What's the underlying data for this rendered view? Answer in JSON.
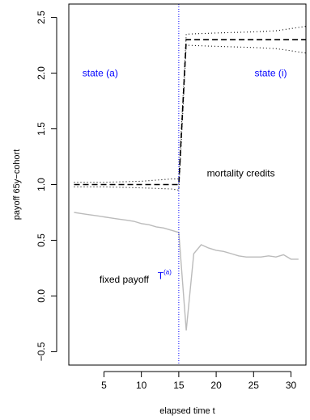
{
  "chart_data": {
    "type": "line",
    "title": "",
    "xlabel": "elapsed time t",
    "ylabel": "payoff 65y−cohort",
    "xlim": [
      0.3,
      32
    ],
    "ylim": [
      -0.62,
      2.62
    ],
    "x_ticks": [
      5,
      10,
      15,
      20,
      25,
      30
    ],
    "y_ticks": [
      -0.5,
      0.0,
      0.5,
      1.0,
      1.5,
      2.0,
      2.5
    ],
    "x_tick_labels": [
      "5",
      "10",
      "15",
      "20",
      "25",
      "30"
    ],
    "y_tick_labels": [
      "−0.5",
      "0.0",
      "0.5",
      "1.0",
      "1.5",
      "2.0",
      "2.5"
    ],
    "grid": false,
    "vline": {
      "x": 15,
      "color": "#0000ff",
      "style": "dotted"
    },
    "series": [
      {
        "style": "dashed",
        "color": "#000000",
        "x": [
          1,
          2,
          3,
          4,
          5,
          6,
          7,
          8,
          9,
          10,
          11,
          12,
          13,
          14,
          15,
          16,
          17,
          18,
          19,
          20,
          21,
          22,
          23,
          24,
          25,
          26,
          27,
          28,
          29,
          30,
          31,
          32
        ],
        "y": [
          1.0,
          1.0,
          1.0,
          1.0,
          1.0,
          1.0,
          1.0,
          1.0,
          1.0,
          1.0,
          1.0,
          1.0,
          1.0,
          1.0,
          1.0,
          2.3,
          2.3,
          2.3,
          2.3,
          2.3,
          2.3,
          2.3,
          2.3,
          2.3,
          2.3,
          2.3,
          2.3,
          2.3,
          2.3,
          2.3,
          2.3,
          2.3
        ]
      },
      {
        "style": "dotted",
        "color": "#000000",
        "x": [
          1,
          5,
          10,
          14,
          15,
          16,
          20,
          25,
          28,
          30,
          32
        ],
        "y": [
          1.02,
          1.02,
          1.03,
          1.05,
          1.05,
          2.35,
          2.36,
          2.37,
          2.38,
          2.4,
          2.42
        ]
      },
      {
        "style": "dotted",
        "color": "#000000",
        "x": [
          1,
          5,
          10,
          14,
          15,
          16,
          20,
          25,
          28,
          30,
          32
        ],
        "y": [
          0.98,
          0.98,
          0.97,
          0.96,
          0.95,
          2.25,
          2.24,
          2.23,
          2.22,
          2.2,
          2.18
        ]
      },
      {
        "style": "solid",
        "color": "#bbbbbb",
        "x": [
          1,
          2,
          3,
          4,
          5,
          6,
          7,
          8,
          9,
          10,
          11,
          12,
          13,
          14,
          15,
          16,
          17,
          18,
          19,
          20,
          21,
          22,
          23,
          24,
          25,
          26,
          27,
          28,
          29,
          30,
          31
        ],
        "y": [
          0.75,
          0.74,
          0.73,
          0.72,
          0.71,
          0.7,
          0.69,
          0.68,
          0.67,
          0.65,
          0.64,
          0.62,
          0.61,
          0.59,
          0.57,
          -0.31,
          0.38,
          0.46,
          0.43,
          0.41,
          0.4,
          0.38,
          0.36,
          0.35,
          0.35,
          0.35,
          0.36,
          0.35,
          0.37,
          0.33,
          0.33
        ]
      }
    ],
    "annotations": [
      {
        "text": "state (a)",
        "x": 4.5,
        "y": 2.0,
        "color": "#0000ff"
      },
      {
        "text": "state (i)",
        "x": 27.3,
        "y": 2.0,
        "color": "#0000ff"
      },
      {
        "text": "mortality credits",
        "x": 23.3,
        "y": 1.1,
        "color": "#000000"
      },
      {
        "text": "fixed payoff",
        "x": 7.7,
        "y": 0.15,
        "color": "#000000"
      },
      {
        "text": "T",
        "sup": "(a)",
        "x": 13.1,
        "y": 0.18,
        "color": "#0000ff"
      }
    ]
  }
}
